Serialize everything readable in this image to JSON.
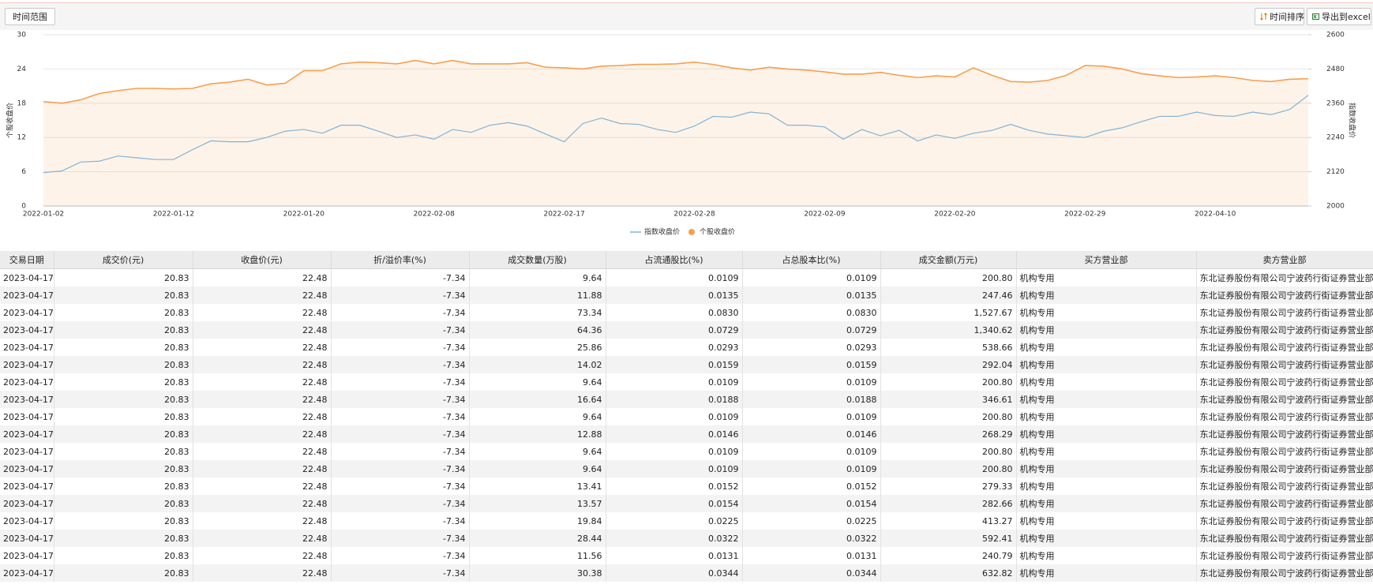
{
  "toolbar": {
    "range_button": "时间范围",
    "sort_button": "时间排序",
    "export_button": "导出到excel"
  },
  "chart_data": {
    "type": "line",
    "y_label": "个股收盘价",
    "y2_label": "指数收盘价",
    "categories": [
      "2022-01-02",
      null,
      null,
      null,
      null,
      null,
      null,
      "2022-01-12",
      null,
      null,
      null,
      null,
      null,
      null,
      "2022-01-20",
      null,
      null,
      null,
      null,
      null,
      null,
      "2022-02-08",
      null,
      null,
      null,
      null,
      null,
      null,
      "2022-02-17",
      null,
      null,
      null,
      null,
      null,
      null,
      "2022-02-28",
      null,
      null,
      null,
      null,
      null,
      null,
      "2022-02-09",
      null,
      null,
      null,
      null,
      null,
      null,
      "2022-02-20",
      null,
      null,
      null,
      null,
      null,
      null,
      "2022-02-29",
      null,
      null,
      null,
      null,
      null,
      null,
      "2022-04-10",
      null,
      null,
      null,
      null,
      null
    ],
    "series": [
      {
        "name": "指数收盘价",
        "color": "#7fb3d9",
        "axis": "y2",
        "values": [
          2117,
          2123,
          2154,
          2157,
          2175,
          2169,
          2163,
          2163,
          2197,
          2228,
          2225,
          2225,
          2240,
          2262,
          2268,
          2255,
          2283,
          2283,
          2262,
          2240,
          2249,
          2234,
          2268,
          2258,
          2283,
          2292,
          2280,
          2252,
          2225,
          2289,
          2308,
          2289,
          2286,
          2268,
          2258,
          2280,
          2314,
          2311,
          2329,
          2323,
          2283,
          2283,
          2277,
          2234,
          2268,
          2246,
          2265,
          2228,
          2249,
          2237,
          2255,
          2265,
          2286,
          2265,
          2252,
          2246,
          2240,
          2262,
          2274,
          2295,
          2314,
          2314,
          2329,
          2317,
          2314,
          2329,
          2320,
          2338,
          2388
        ]
      },
      {
        "name": "个股收盘价",
        "color": "#f5a04f",
        "axis": "y",
        "area": true,
        "values": [
          18.3,
          18.0,
          18.6,
          19.7,
          20.2,
          20.6,
          20.6,
          20.5,
          20.6,
          21.4,
          21.7,
          22.2,
          21.2,
          21.5,
          23.7,
          23.7,
          24.9,
          25.2,
          25.1,
          24.9,
          25.5,
          24.9,
          25.5,
          24.9,
          24.9,
          24.9,
          25.1,
          24.3,
          24.2,
          24.0,
          24.5,
          24.6,
          24.8,
          24.8,
          24.9,
          25.2,
          24.8,
          24.2,
          23.8,
          24.3,
          24.0,
          23.8,
          23.5,
          23.1,
          23.1,
          23.4,
          22.9,
          22.5,
          22.8,
          22.6,
          24.2,
          22.9,
          21.8,
          21.7,
          22.0,
          22.9,
          24.6,
          24.5,
          24.0,
          23.2,
          22.8,
          22.5,
          22.6,
          22.8,
          22.5,
          22.0,
          21.8,
          22.2,
          22.3
        ]
      }
    ],
    "ylim": [
      0,
      30
    ],
    "yticks": [
      0,
      6,
      12,
      18,
      24,
      30
    ],
    "y2lim": [
      2000,
      2600
    ],
    "y2ticks": [
      2000,
      2120,
      2240,
      2360,
      2480,
      2600
    ],
    "grid": true,
    "legend": "bottom"
  },
  "table": {
    "columns": [
      "交易日期",
      "成交价(元)",
      "收盘价(元)",
      "折/溢价率(%)",
      "成交数量(万股)",
      "占流通股比(%)",
      "占总股本比(%)",
      "成交金额(万元)",
      "买方营业部",
      "卖方营业部"
    ],
    "rows": [
      [
        "2023-04-17",
        "20.83",
        "22.48",
        "-7.34",
        "9.64",
        "0.0109",
        "0.0109",
        "200.80",
        "机构专用",
        "东北证券股份有限公司宁波药行街证券营业部"
      ],
      [
        "2023-04-17",
        "20.83",
        "22.48",
        "-7.34",
        "11.88",
        "0.0135",
        "0.0135",
        "247.46",
        "机构专用",
        "东北证券股份有限公司宁波药行街证券营业部"
      ],
      [
        "2023-04-17",
        "20.83",
        "22.48",
        "-7.34",
        "73.34",
        "0.0830",
        "0.0830",
        "1,527.67",
        "机构专用",
        "东北证券股份有限公司宁波药行街证券营业部"
      ],
      [
        "2023-04-17",
        "20.83",
        "22.48",
        "-7.34",
        "64.36",
        "0.0729",
        "0.0729",
        "1,340.62",
        "机构专用",
        "东北证券股份有限公司宁波药行街证券营业部"
      ],
      [
        "2023-04-17",
        "20.83",
        "22.48",
        "-7.34",
        "25.86",
        "0.0293",
        "0.0293",
        "538.66",
        "机构专用",
        "东北证券股份有限公司宁波药行街证券营业部"
      ],
      [
        "2023-04-17",
        "20.83",
        "22.48",
        "-7.34",
        "14.02",
        "0.0159",
        "0.0159",
        "292.04",
        "机构专用",
        "东北证券股份有限公司宁波药行街证券营业部"
      ],
      [
        "2023-04-17",
        "20.83",
        "22.48",
        "-7.34",
        "9.64",
        "0.0109",
        "0.0109",
        "200.80",
        "机构专用",
        "东北证券股份有限公司宁波药行街证券营业部"
      ],
      [
        "2023-04-17",
        "20.83",
        "22.48",
        "-7.34",
        "16.64",
        "0.0188",
        "0.0188",
        "346.61",
        "机构专用",
        "东北证券股份有限公司宁波药行街证券营业部"
      ],
      [
        "2023-04-17",
        "20.83",
        "22.48",
        "-7.34",
        "9.64",
        "0.0109",
        "0.0109",
        "200.80",
        "机构专用",
        "东北证券股份有限公司宁波药行街证券营业部"
      ],
      [
        "2023-04-17",
        "20.83",
        "22.48",
        "-7.34",
        "12.88",
        "0.0146",
        "0.0146",
        "268.29",
        "机构专用",
        "东北证券股份有限公司宁波药行街证券营业部"
      ],
      [
        "2023-04-17",
        "20.83",
        "22.48",
        "-7.34",
        "9.64",
        "0.0109",
        "0.0109",
        "200.80",
        "机构专用",
        "东北证券股份有限公司宁波药行街证券营业部"
      ],
      [
        "2023-04-17",
        "20.83",
        "22.48",
        "-7.34",
        "9.64",
        "0.0109",
        "0.0109",
        "200.80",
        "机构专用",
        "东北证券股份有限公司宁波药行街证券营业部"
      ],
      [
        "2023-04-17",
        "20.83",
        "22.48",
        "-7.34",
        "13.41",
        "0.0152",
        "0.0152",
        "279.33",
        "机构专用",
        "东北证券股份有限公司宁波药行街证券营业部"
      ],
      [
        "2023-04-17",
        "20.83",
        "22.48",
        "-7.34",
        "13.57",
        "0.0154",
        "0.0154",
        "282.66",
        "机构专用",
        "东北证券股份有限公司宁波药行街证券营业部"
      ],
      [
        "2023-04-17",
        "20.83",
        "22.48",
        "-7.34",
        "19.84",
        "0.0225",
        "0.0225",
        "413.27",
        "机构专用",
        "东北证券股份有限公司宁波药行街证券营业部"
      ],
      [
        "2023-04-17",
        "20.83",
        "22.48",
        "-7.34",
        "28.44",
        "0.0322",
        "0.0322",
        "592.41",
        "机构专用",
        "东北证券股份有限公司宁波药行街证券营业部"
      ],
      [
        "2023-04-17",
        "20.83",
        "22.48",
        "-7.34",
        "11.56",
        "0.0131",
        "0.0131",
        "240.79",
        "机构专用",
        "东北证券股份有限公司宁波药行街证券营业部"
      ],
      [
        "2023-04-17",
        "20.83",
        "22.48",
        "-7.34",
        "30.38",
        "0.0344",
        "0.0344",
        "632.82",
        "机构专用",
        "东北证券股份有限公司宁波药行街证券营业部"
      ]
    ]
  }
}
